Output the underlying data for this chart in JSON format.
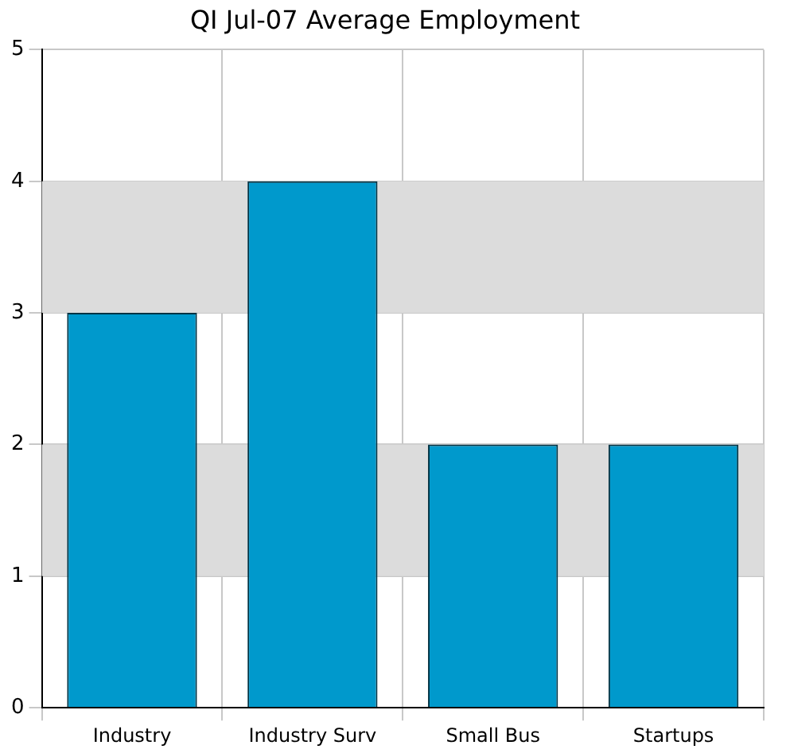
{
  "chart_data": {
    "type": "bar",
    "title": "QI Jul-07 Average Employment",
    "categories": [
      "Industry",
      "Industry Surv",
      "Small Bus",
      "Startups"
    ],
    "values": [
      3,
      4,
      2,
      2
    ],
    "color": "#0099cc",
    "ylim": [
      0,
      5
    ],
    "yticks": [
      0,
      1,
      2,
      3,
      4,
      5
    ],
    "grid": true,
    "bands": [
      {
        "axis": "y",
        "from": 1,
        "to": 2,
        "color": "#dcdcdc"
      },
      {
        "axis": "y",
        "from": 3,
        "to": 4,
        "color": "#dcdcdc"
      }
    ]
  }
}
